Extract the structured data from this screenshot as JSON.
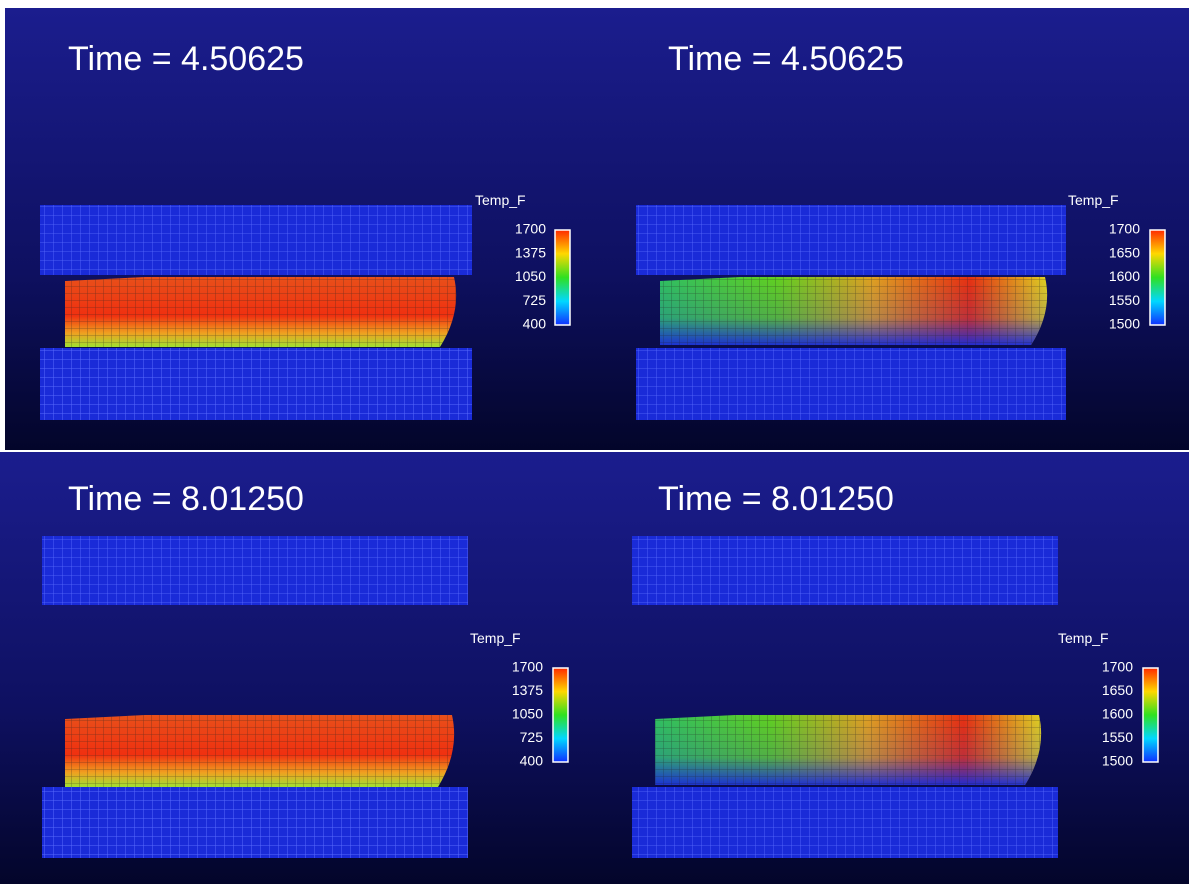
{
  "panels": [
    {
      "time": "Time = 4.50625",
      "legend": {
        "title": "Temp_F",
        "labels": [
          "1700",
          "1375",
          "1050",
          "725",
          "400"
        ]
      }
    },
    {
      "time": "Time = 4.50625",
      "legend": {
        "title": "Temp_F",
        "labels": [
          "1700",
          "1650",
          "1600",
          "1550",
          "1500"
        ]
      }
    },
    {
      "time": "Time = 8.01250",
      "legend": {
        "title": "Temp_F",
        "labels": [
          "1700",
          "1375",
          "1050",
          "725",
          "400"
        ]
      }
    },
    {
      "time": "Time = 8.01250",
      "legend": {
        "title": "Temp_F",
        "labels": [
          "1700",
          "1650",
          "1600",
          "1550",
          "1500"
        ]
      }
    }
  ]
}
